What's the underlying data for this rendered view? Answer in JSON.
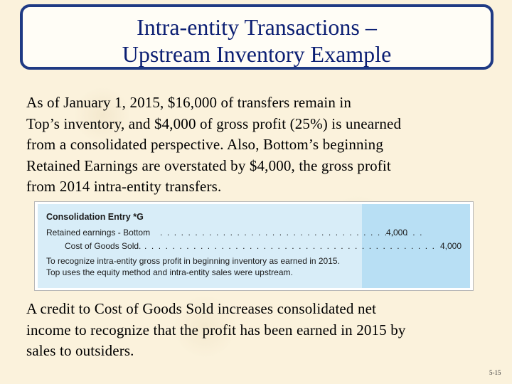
{
  "title": {
    "line1": "Intra-entity Transactions –",
    "line2": "Upstream Inventory Example"
  },
  "intro": {
    "lines": [
      "As of January 1, 2015, $16,000 of transfers remain in",
      "Top’s inventory, and $4,000 of gross profit (25%) is unearned",
      "from a consolidated perspective.  Also, Bottom’s beginning",
      "Retained Earnings are overstated by $4,000, the gross profit",
      "from 2014 intra-entity transfers."
    ]
  },
  "entry": {
    "heading": "Consolidation Entry *G",
    "debit_account": "Retained earnings - Bottom",
    "debit_leader": ". . . . . . . . . . . . . . . . . . . . . . . . . . . . . . . . . . . . . .",
    "debit_amount": "4,000",
    "credit_account": "Cost of Goods Sold.",
    "credit_leader": ". . . . . . . . . . . . . . . . . . . . . . . . . . . . . . . . . . . . . . . . . .",
    "credit_amount": "4,000",
    "note_line1": "To recognize intra-entity gross profit in beginning inventory as earned in 2015.",
    "note_line2": "Top uses the equity method and intra-entity sales were upstream."
  },
  "conclusion": {
    "lines": [
      "A credit to Cost of Goods Sold increases consolidated net",
      "income to recognize that the profit has been earned in 2015 by",
      "sales to outsiders."
    ]
  },
  "slide_number": "5-15",
  "colors": {
    "title_border": "#1f3a84",
    "title_text": "#0c1f73",
    "entry_background": "#d8edf8",
    "entry_amount_column": "#b8dff4"
  }
}
